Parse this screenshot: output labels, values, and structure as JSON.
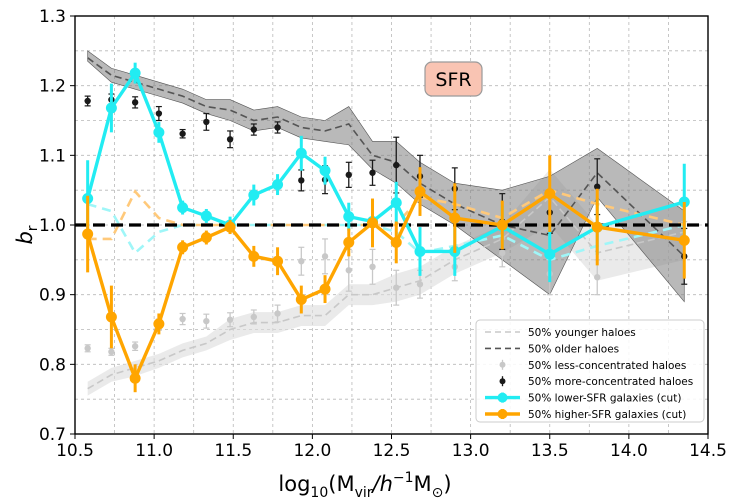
{
  "chart_data": {
    "type": "line",
    "xlabel_main": "log",
    "xlabel_sub": "10",
    "xlabel_rest": "(M",
    "xlabel_vir": "vir",
    "xlabel_h": "/h",
    "xlabel_exp": "−1",
    "xlabel_msun": "M",
    "xlabel_sun": "⊙",
    "xlabel_close": ")",
    "ylabel": "b",
    "ylabel_sub": "r",
    "annotation": "SFR",
    "xlim": [
      10.5,
      14.5
    ],
    "ylim": [
      0.7,
      1.3
    ],
    "xticks": [
      10.5,
      11.0,
      11.5,
      12.0,
      12.5,
      13.0,
      13.5,
      14.0,
      14.5
    ],
    "xtick_labels": [
      "10.5",
      "11.0",
      "11.5",
      "12.0",
      "12.5",
      "13.0",
      "13.5",
      "14.0",
      "14.5"
    ],
    "yticks": [
      0.7,
      0.8,
      0.9,
      1.0,
      1.1,
      1.2,
      1.3
    ],
    "ytick_labels": [
      "0.7",
      "0.8",
      "0.9",
      "1.0",
      "1.1",
      "1.2",
      "1.3"
    ],
    "grid": true,
    "reference_line": 1.0,
    "legend_position": "lower-right",
    "x": [
      10.58,
      10.73,
      10.88,
      11.03,
      11.18,
      11.33,
      11.48,
      11.63,
      11.78,
      11.93,
      12.08,
      12.23,
      12.38,
      12.53,
      12.68,
      12.9,
      13.2,
      13.5,
      13.8,
      14.35
    ],
    "series": [
      {
        "name": "50% younger haloes",
        "style": "dashed-band",
        "color": "#c8c8c8",
        "values": [
          0.765,
          0.785,
          0.795,
          0.805,
          0.82,
          0.83,
          0.85,
          0.86,
          0.86,
          0.87,
          0.87,
          0.9,
          0.9,
          0.91,
          0.92,
          0.95,
          0.98,
          1.04,
          0.96,
          0.99
        ],
        "band_low": [
          0.755,
          0.775,
          0.783,
          0.795,
          0.81,
          0.82,
          0.835,
          0.845,
          0.845,
          0.855,
          0.855,
          0.885,
          0.885,
          0.89,
          0.9,
          0.93,
          0.96,
          1.0,
          0.92,
          0.95
        ],
        "band_high": [
          0.775,
          0.795,
          0.805,
          0.815,
          0.83,
          0.84,
          0.865,
          0.875,
          0.875,
          0.885,
          0.885,
          0.915,
          0.915,
          0.93,
          0.94,
          0.97,
          1.0,
          1.08,
          1.0,
          1.03
        ]
      },
      {
        "name": "50% older haloes",
        "style": "dashed-band",
        "color": "#555555",
        "values": [
          1.24,
          1.215,
          1.205,
          1.195,
          1.185,
          1.17,
          1.165,
          1.15,
          1.155,
          1.14,
          1.135,
          1.145,
          1.1,
          1.09,
          1.06,
          1.03,
          1.0,
          0.985,
          1.075,
          0.955
        ],
        "band_low": [
          1.235,
          1.205,
          1.195,
          1.185,
          1.175,
          1.16,
          1.15,
          1.135,
          1.14,
          1.125,
          1.12,
          1.115,
          1.08,
          1.06,
          1.03,
          1.0,
          0.95,
          0.9,
          1.04,
          0.89
        ],
        "band_high": [
          1.25,
          1.225,
          1.215,
          1.205,
          1.195,
          1.18,
          1.18,
          1.165,
          1.17,
          1.155,
          1.15,
          1.17,
          1.12,
          1.12,
          1.09,
          1.06,
          1.05,
          1.07,
          1.11,
          1.02
        ]
      },
      {
        "name": "50% less-concentrated haloes",
        "style": "points",
        "color": "#c8c8c8",
        "values": [
          0.823,
          0.818,
          0.826,
          0.857,
          0.865,
          0.862,
          0.864,
          0.868,
          0.873,
          0.948,
          0.955,
          0.935,
          0.94,
          0.91,
          0.915,
          0.94,
          0.96,
          0.93,
          0.925,
          0.98
        ],
        "errors": [
          0.005,
          0.005,
          0.006,
          0.008,
          0.008,
          0.01,
          0.01,
          0.01,
          0.012,
          0.02,
          0.025,
          0.03,
          0.025,
          0.025,
          0.02,
          0.02,
          0.02,
          0.03,
          0.025,
          0.025
        ]
      },
      {
        "name": "50% more-concentrated haloes",
        "style": "points",
        "color": "#1a1a1a",
        "values": [
          1.178,
          1.18,
          1.176,
          1.16,
          1.131,
          1.148,
          1.123,
          1.137,
          1.14,
          1.064,
          1.065,
          1.072,
          1.075,
          1.086,
          1.07,
          1.052,
          1.005,
          1.018,
          1.055,
          0.955
        ],
        "errors": [
          0.007,
          0.008,
          0.008,
          0.01,
          0.006,
          0.012,
          0.012,
          0.008,
          0.008,
          0.015,
          0.02,
          0.018,
          0.018,
          0.04,
          0.03,
          0.03,
          0.04,
          0.03,
          0.04,
          0.04
        ]
      },
      {
        "name": "50% lower-SFR galaxies (cut)",
        "style": "solid-points",
        "color": "#22ecf2",
        "values": [
          1.038,
          1.168,
          1.218,
          1.133,
          1.025,
          1.013,
          1.0,
          1.043,
          1.058,
          1.103,
          1.078,
          1.012,
          1.005,
          1.032,
          0.962,
          0.962,
          0.998,
          0.958,
          0.997,
          1.033
        ],
        "errors": [
          0.055,
          0.035,
          0.015,
          0.015,
          0.01,
          0.01,
          0.012,
          0.015,
          0.015,
          0.025,
          0.02,
          0.02,
          0.025,
          0.03,
          0.035,
          0.035,
          0.03,
          0.04,
          0.04,
          0.055
        ]
      },
      {
        "name": "50% higher-SFR galaxies (cut)",
        "style": "solid-points",
        "color": "#ffa500",
        "values": [
          0.987,
          0.868,
          0.78,
          0.858,
          0.968,
          0.982,
          0.997,
          0.955,
          0.948,
          0.893,
          0.908,
          0.975,
          1.003,
          0.975,
          1.048,
          1.01,
          1.0,
          1.045,
          0.997,
          0.978
        ],
        "errors": [
          0.055,
          0.045,
          0.02,
          0.015,
          0.01,
          0.01,
          0.01,
          0.015,
          0.02,
          0.02,
          0.02,
          0.02,
          0.035,
          0.03,
          0.035,
          0.05,
          0.035,
          0.055,
          0.055,
          0.055
        ]
      },
      {
        "name": "",
        "style": "dashed-light",
        "color": "#9ff6f8",
        "values": [
          1.03,
          1.02,
          0.96,
          0.99,
          1.0,
          1.0,
          1.0,
          1.0,
          1.0,
          1.0,
          1.0,
          1.0,
          1.0,
          0.99,
          0.96,
          0.97,
          0.985,
          0.95,
          0.97,
          1.0
        ]
      },
      {
        "name": "",
        "style": "dashed-light",
        "color": "#ffc97a",
        "values": [
          0.98,
          0.98,
          1.048,
          1.01,
          1.0,
          1.0,
          1.0,
          1.0,
          1.0,
          1.0,
          1.0,
          1.0,
          1.0,
          1.0,
          1.04,
          1.03,
          1.01,
          1.05,
          1.03,
          1.0
        ]
      }
    ]
  },
  "colors": {
    "cyan": "#22ecf2",
    "orange": "#ffa500",
    "badge_fill": "#f9c4b3",
    "badge_border": "#9a9a9a"
  }
}
